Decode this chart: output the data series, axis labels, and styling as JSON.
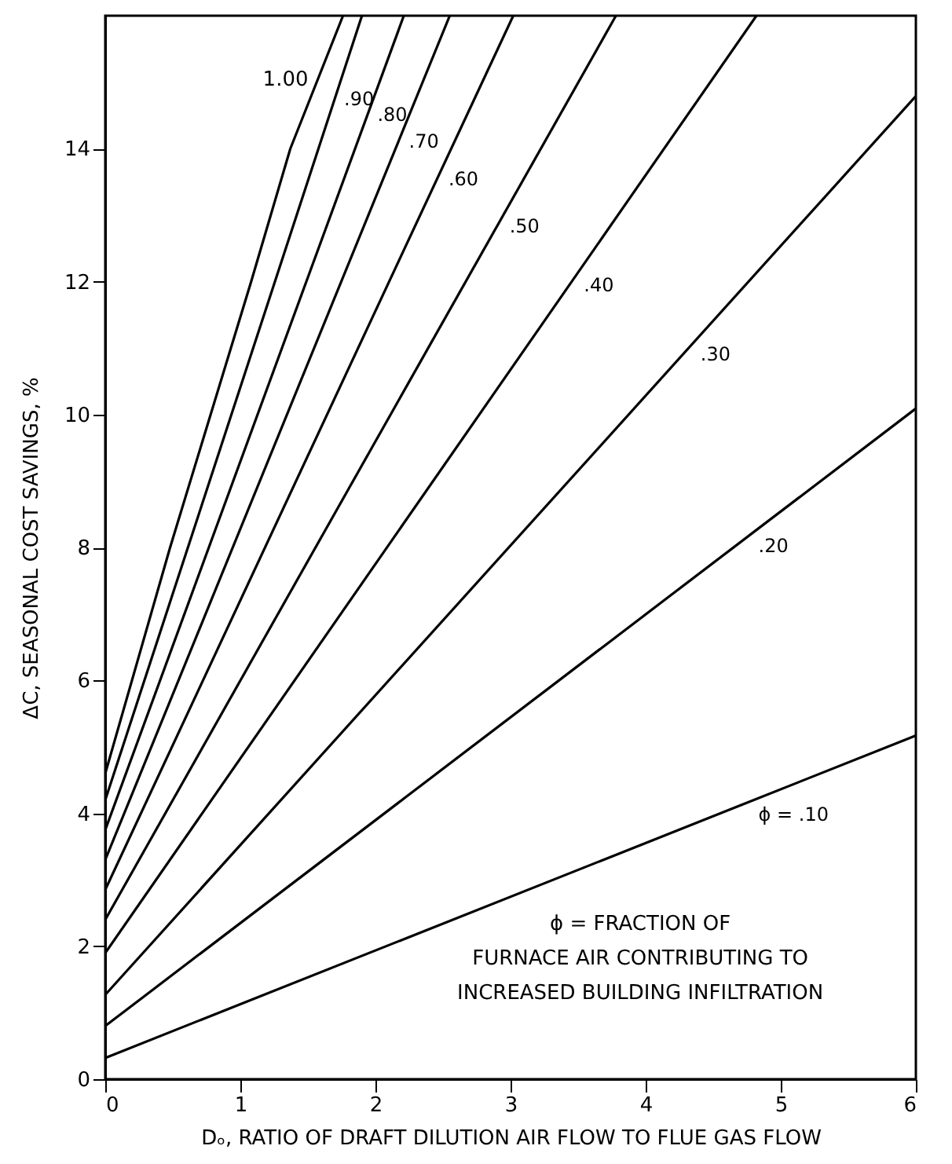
{
  "chart_data": {
    "type": "line",
    "xlabel": "Dₒ, RATIO OF DRAFT DILUTION AIR FLOW TO FLUE GAS FLOW",
    "ylabel": "ΔC, SEASONAL COST SAVINGS, %",
    "annotations": [
      "ϕ = FRACTION OF\nFURNACE AIR CONTRIBUTING TO\nINCREASED BUILDING INFILTRATION"
    ],
    "xlim": [
      0,
      6
    ],
    "xticks": [
      0,
      1,
      2,
      3,
      4,
      5,
      6
    ],
    "ylim": [
      0,
      16
    ],
    "yticks": [
      0,
      2,
      4,
      6,
      8,
      10,
      12,
      14
    ],
    "series": [
      {
        "name": "1.00",
        "color": "#000000",
        "x": [
          0,
          0.48,
          1.08,
          1.37,
          1.76
        ],
        "values": [
          4.6,
          8,
          12,
          14,
          16
        ]
      },
      {
        "name": ".90",
        "color": "#000000",
        "x": [
          0,
          1.9
        ],
        "values": [
          4.2,
          16
        ]
      },
      {
        "name": ".80",
        "color": "#000000",
        "x": [
          0,
          2.21
        ],
        "values": [
          3.75,
          16
        ]
      },
      {
        "name": ".70",
        "color": "#000000",
        "x": [
          0,
          2.55
        ],
        "values": [
          3.3,
          16
        ]
      },
      {
        "name": ".60",
        "color": "#000000",
        "x": [
          0,
          3.02
        ],
        "values": [
          2.85,
          16
        ]
      },
      {
        "name": ".50",
        "color": "#000000",
        "x": [
          0,
          3.78
        ],
        "values": [
          2.4,
          16
        ]
      },
      {
        "name": ".40",
        "color": "#000000",
        "x": [
          0,
          4.82
        ],
        "values": [
          1.9,
          16
        ]
      },
      {
        "name": ".30",
        "color": "#000000",
        "x": [
          0,
          6
        ],
        "values": [
          1.27,
          14.79
        ]
      },
      {
        "name": ".20",
        "color": "#000000",
        "x": [
          0,
          6
        ],
        "values": [
          0.8,
          10.09
        ]
      },
      {
        "name": "ϕ = .10",
        "color": "#000000",
        "x": [
          0,
          6
        ],
        "values": [
          0.32,
          5.17
        ]
      }
    ]
  }
}
